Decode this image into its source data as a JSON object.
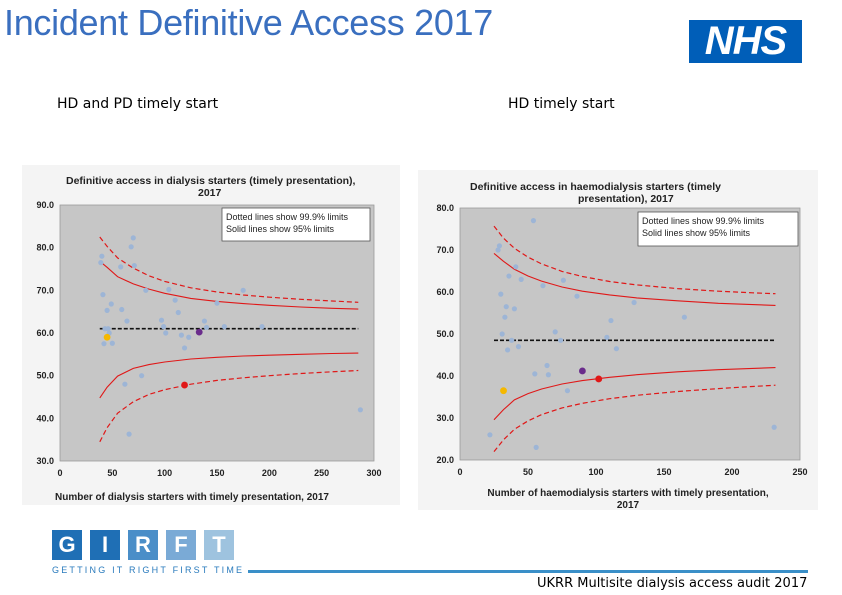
{
  "page": {
    "title": "Incident Definitive Access 2017",
    "logo": "NHS",
    "subtitle_left": "HD and PD timely start",
    "subtitle_right": "HD timely start",
    "footer": "UKRR Multisite dialysis access audit 2017",
    "girft_letters": [
      "G",
      "I",
      "R",
      "F",
      "T"
    ],
    "girft_tagline": "GETTING IT RIGHT FIRST TIME",
    "colors": {
      "title": "#3a6fbf",
      "nhs": "#005eb8",
      "girft_blue": "#1f6fb5",
      "girft_light": "#9ec3df",
      "plot_bg": "#c6c6c6",
      "point": "#9db5d6",
      "limit": "#e01818"
    }
  },
  "chart_data": [
    {
      "type": "scatter",
      "title": "Definitive access in dialysis starters (timely presentation), 2017",
      "xlabel": "Number of dialysis starters with timely presentation, 2017",
      "ylabel": "",
      "xlim": [
        0,
        300
      ],
      "ylim": [
        30,
        90
      ],
      "xticks": [
        "0",
        "50",
        "100",
        "150",
        "200",
        "250",
        "300"
      ],
      "yticks": [
        "30.0",
        "40.0",
        "50.0",
        "60.0",
        "70.0",
        "80.0",
        "90.0"
      ],
      "legend": [
        "Dotted lines show 99.9% limits",
        "Solid lines show 95% limits"
      ],
      "mean": 61,
      "limits": {
        "x": [
          38,
          45,
          55,
          70,
          85,
          100,
          125,
          150,
          175,
          200,
          230,
          260,
          285
        ],
        "upper_999": [
          82.5,
          80.3,
          77.6,
          75.2,
          73.4,
          72.1,
          70.6,
          69.6,
          68.9,
          68.4,
          67.9,
          67.5,
          67.2
        ],
        "upper_95": [
          76.8,
          75.4,
          73.2,
          71.5,
          70.3,
          69.3,
          68.1,
          67.4,
          66.9,
          66.5,
          66.1,
          65.8,
          65.6
        ],
        "lower_95": [
          44.8,
          47.3,
          49.9,
          51.7,
          52.6,
          53.2,
          53.9,
          54.3,
          54.6,
          54.8,
          55.0,
          55.2,
          55.3
        ],
        "lower_999": [
          34.5,
          37.8,
          41.2,
          43.9,
          45.6,
          46.7,
          48.0,
          48.9,
          49.5,
          50.0,
          50.5,
          50.9,
          51.2
        ]
      },
      "points": [
        {
          "x": 39,
          "y": 76.5
        },
        {
          "x": 40,
          "y": 78
        },
        {
          "x": 41,
          "y": 69
        },
        {
          "x": 42,
          "y": 57.5
        },
        {
          "x": 43,
          "y": 61
        },
        {
          "x": 45,
          "y": 65.3
        },
        {
          "x": 46,
          "y": 61
        },
        {
          "x": 47,
          "y": 60
        },
        {
          "x": 49,
          "y": 66.8
        },
        {
          "x": 50,
          "y": 57.6
        },
        {
          "x": 58,
          "y": 75.5
        },
        {
          "x": 59,
          "y": 65.5
        },
        {
          "x": 62,
          "y": 48
        },
        {
          "x": 64,
          "y": 62.8
        },
        {
          "x": 66,
          "y": 36.3
        },
        {
          "x": 68,
          "y": 80.2
        },
        {
          "x": 70,
          "y": 82.3
        },
        {
          "x": 71,
          "y": 75.8
        },
        {
          "x": 78,
          "y": 50
        },
        {
          "x": 82,
          "y": 70
        },
        {
          "x": 97,
          "y": 63
        },
        {
          "x": 99,
          "y": 61.5
        },
        {
          "x": 101,
          "y": 60
        },
        {
          "x": 104,
          "y": 70.2
        },
        {
          "x": 110,
          "y": 67.7
        },
        {
          "x": 113,
          "y": 64.8
        },
        {
          "x": 116,
          "y": 59.5
        },
        {
          "x": 119,
          "y": 56.5
        },
        {
          "x": 123,
          "y": 59
        },
        {
          "x": 138,
          "y": 62.8
        },
        {
          "x": 140,
          "y": 61.3
        },
        {
          "x": 150,
          "y": 67
        },
        {
          "x": 157,
          "y": 61.5
        },
        {
          "x": 175,
          "y": 70
        },
        {
          "x": 193,
          "y": 61.5
        },
        {
          "x": 287,
          "y": 42
        }
      ],
      "highlights": [
        {
          "x": 45,
          "y": 59,
          "color": "#f5b800"
        },
        {
          "x": 133,
          "y": 60.2,
          "color": "#6a2c8c"
        },
        {
          "x": 119,
          "y": 47.8,
          "color": "#e01818"
        }
      ]
    },
    {
      "type": "scatter",
      "title": "Definitive access in haemodialysis starters (timely presentation), 2017",
      "xlabel": "Number of haemodialysis starters with timely presentation, 2017",
      "ylabel": "",
      "xlim": [
        0,
        250
      ],
      "ylim": [
        20,
        80
      ],
      "xticks": [
        "0",
        "50",
        "100",
        "150",
        "200",
        "250"
      ],
      "yticks": [
        "20.0",
        "30.0",
        "40.0",
        "50.0",
        "60.0",
        "70.0",
        "80.0"
      ],
      "legend": [
        "Dotted lines show 99.9% limits",
        "Solid lines show 95% limits"
      ],
      "mean": 48.5,
      "limits": {
        "x": [
          25,
          32,
          40,
          50,
          60,
          75,
          90,
          110,
          130,
          160,
          190,
          215,
          232
        ],
        "upper_999": [
          75.7,
          72.8,
          70.4,
          68.3,
          66.7,
          64.9,
          63.7,
          62.5,
          61.7,
          60.8,
          60.2,
          59.8,
          59.6
        ],
        "upper_95": [
          69.2,
          67.3,
          65.4,
          63.8,
          62.6,
          61.2,
          60.2,
          59.3,
          58.6,
          57.9,
          57.3,
          57.0,
          56.8
        ],
        "lower_95": [
          29.6,
          32.0,
          34.3,
          35.8,
          36.9,
          38.1,
          38.9,
          39.7,
          40.3,
          41.0,
          41.5,
          41.8,
          42.0
        ],
        "lower_999": [
          22.0,
          24.8,
          27.3,
          29.3,
          30.8,
          32.4,
          33.5,
          34.6,
          35.4,
          36.3,
          37.0,
          37.5,
          37.8
        ]
      },
      "points": [
        {
          "x": 22,
          "y": 26
        },
        {
          "x": 28,
          "y": 70
        },
        {
          "x": 29,
          "y": 71
        },
        {
          "x": 30,
          "y": 59.5
        },
        {
          "x": 31,
          "y": 50
        },
        {
          "x": 33,
          "y": 54
        },
        {
          "x": 34,
          "y": 56.5
        },
        {
          "x": 35,
          "y": 46.2
        },
        {
          "x": 36,
          "y": 63.8
        },
        {
          "x": 38,
          "y": 48.5
        },
        {
          "x": 40,
          "y": 56
        },
        {
          "x": 41,
          "y": 66
        },
        {
          "x": 43,
          "y": 47
        },
        {
          "x": 45,
          "y": 63
        },
        {
          "x": 54,
          "y": 77
        },
        {
          "x": 55,
          "y": 40.5
        },
        {
          "x": 56,
          "y": 23
        },
        {
          "x": 61,
          "y": 61.5
        },
        {
          "x": 64,
          "y": 42.5
        },
        {
          "x": 65,
          "y": 40.3
        },
        {
          "x": 70,
          "y": 50.5
        },
        {
          "x": 74,
          "y": 48.5
        },
        {
          "x": 76,
          "y": 62.8
        },
        {
          "x": 79,
          "y": 36.5
        },
        {
          "x": 86,
          "y": 59
        },
        {
          "x": 108,
          "y": 49.2
        },
        {
          "x": 111,
          "y": 53.2
        },
        {
          "x": 115,
          "y": 46.5
        },
        {
          "x": 128,
          "y": 57.5
        },
        {
          "x": 165,
          "y": 54
        },
        {
          "x": 231,
          "y": 27.8
        }
      ],
      "highlights": [
        {
          "x": 32,
          "y": 36.5,
          "color": "#f5b800"
        },
        {
          "x": 90,
          "y": 41.2,
          "color": "#6a2c8c"
        },
        {
          "x": 102,
          "y": 39.3,
          "color": "#e01818"
        }
      ]
    }
  ]
}
